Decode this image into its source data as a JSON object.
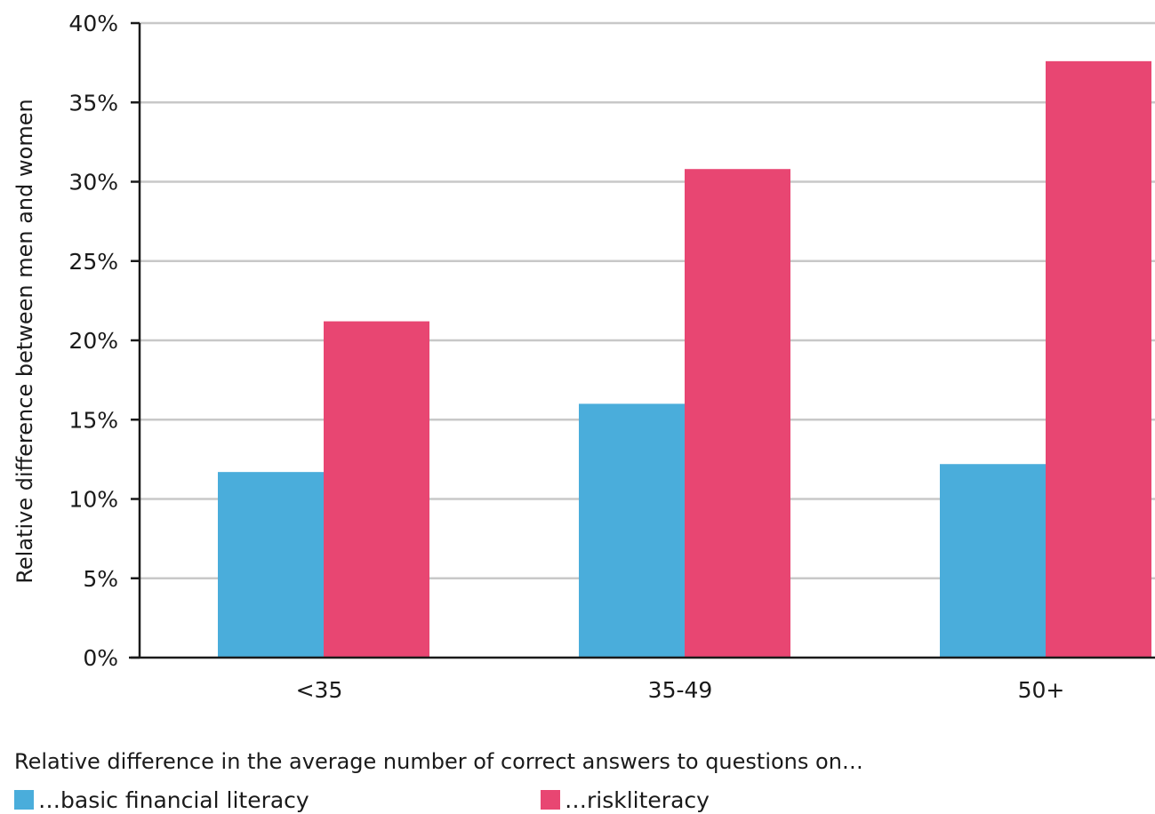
{
  "chart_data": {
    "type": "bar",
    "categories": [
      "<35",
      "35-49",
      "50+"
    ],
    "series": [
      {
        "name": "…basic financial literacy",
        "values": [
          11.7,
          16.0,
          12.2
        ],
        "color": "#4aaddb"
      },
      {
        "name": "…riskliteracy",
        "values": [
          21.2,
          30.8,
          37.6
        ],
        "color": "#e84672"
      }
    ],
    "ylabel": "Relative difference between men and women",
    "xlabel": "Relative difference in the average number of correct answers to questions on…",
    "ylim": [
      0,
      40
    ],
    "yticks": [
      0,
      5,
      10,
      15,
      20,
      25,
      30,
      35,
      40
    ],
    "ytick_suffix": "%",
    "grid": true,
    "legend_position": "bottom-left"
  }
}
